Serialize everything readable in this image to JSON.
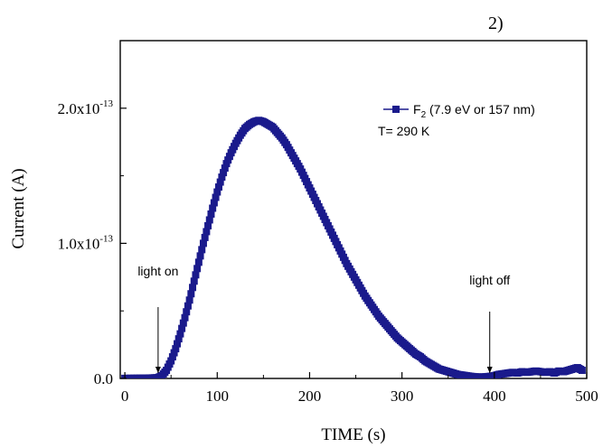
{
  "chart_data": {
    "type": "scatter",
    "title_fragment": "2)",
    "xlabel": "TIME (s)",
    "ylabel": "Current (A)",
    "xlim": [
      -5,
      500
    ],
    "ylim": [
      0,
      2.5e-13
    ],
    "x_ticks": [
      {
        "value": 0,
        "label": "0"
      },
      {
        "value": 100,
        "label": "100"
      },
      {
        "value": 200,
        "label": "200"
      },
      {
        "value": 300,
        "label": "300"
      },
      {
        "value": 400,
        "label": "400"
      },
      {
        "value": 500,
        "label": "500"
      }
    ],
    "y_ticks": [
      {
        "value": 0,
        "base": "0.0",
        "exp": ""
      },
      {
        "value": 1e-13,
        "base": "1.0x10",
        "exp": "-13"
      },
      {
        "value": 2e-13,
        "base": "2.0x10",
        "exp": "-13"
      }
    ],
    "legend": {
      "series_label": "F",
      "series_sub": "2",
      "series_rest": " (7.9 eV or 157 nm)",
      "temp_label": "T= 290 K",
      "location": "top-right"
    },
    "annotations": [
      {
        "text": "light on",
        "x": 36
      },
      {
        "text": "light off",
        "x": 395
      }
    ],
    "series": [
      {
        "color": "#1a1a8c",
        "marker": "square",
        "points": [
          [
            0,
            1e-16
          ],
          [
            10,
            2e-16
          ],
          [
            20,
            3e-16
          ],
          [
            30,
            4e-16
          ],
          [
            36,
            6e-16
          ],
          [
            40,
            2e-15
          ],
          [
            45,
            6e-15
          ],
          [
            50,
            1.3e-14
          ],
          [
            55,
            2.2e-14
          ],
          [
            60,
            3.3e-14
          ],
          [
            65,
            4.5e-14
          ],
          [
            70,
            5.8e-14
          ],
          [
            75,
            7.2e-14
          ],
          [
            80,
            8.6e-14
          ],
          [
            85,
            1e-13
          ],
          [
            90,
            1.13e-13
          ],
          [
            95,
            1.26e-13
          ],
          [
            100,
            1.38e-13
          ],
          [
            105,
            1.49e-13
          ],
          [
            110,
            1.59e-13
          ],
          [
            115,
            1.67e-13
          ],
          [
            120,
            1.74e-13
          ],
          [
            125,
            1.8e-13
          ],
          [
            130,
            1.85e-13
          ],
          [
            135,
            1.88e-13
          ],
          [
            140,
            1.9e-13
          ],
          [
            145,
            1.91e-13
          ],
          [
            150,
            1.9e-13
          ],
          [
            155,
            1.88e-13
          ],
          [
            160,
            1.86e-13
          ],
          [
            165,
            1.82e-13
          ],
          [
            170,
            1.78e-13
          ],
          [
            175,
            1.73e-13
          ],
          [
            180,
            1.67e-13
          ],
          [
            185,
            1.61e-13
          ],
          [
            190,
            1.55e-13
          ],
          [
            195,
            1.48e-13
          ],
          [
            200,
            1.41e-13
          ],
          [
            205,
            1.34e-13
          ],
          [
            210,
            1.27e-13
          ],
          [
            215,
            1.2e-13
          ],
          [
            220,
            1.13e-13
          ],
          [
            225,
            1.06e-13
          ],
          [
            230,
            9.9e-14
          ],
          [
            235,
            9.2e-14
          ],
          [
            240,
            8.5e-14
          ],
          [
            245,
            7.9e-14
          ],
          [
            250,
            7.3e-14
          ],
          [
            255,
            6.7e-14
          ],
          [
            260,
            6.1e-14
          ],
          [
            265,
            5.6e-14
          ],
          [
            270,
            5.1e-14
          ],
          [
            275,
            4.6e-14
          ],
          [
            280,
            4.2e-14
          ],
          [
            285,
            3.8e-14
          ],
          [
            290,
            3.4e-14
          ],
          [
            295,
            3e-14
          ],
          [
            300,
            2.7e-14
          ],
          [
            305,
            2.4e-14
          ],
          [
            310,
            2.1e-14
          ],
          [
            315,
            1.8e-14
          ],
          [
            320,
            1.6e-14
          ],
          [
            325,
            1.3e-14
          ],
          [
            330,
            1.1e-14
          ],
          [
            335,
            9e-15
          ],
          [
            340,
            7e-15
          ],
          [
            345,
            6e-15
          ],
          [
            350,
            5e-15
          ],
          [
            355,
            4e-15
          ],
          [
            360,
            3e-15
          ],
          [
            365,
            2.5e-15
          ],
          [
            370,
            2e-15
          ],
          [
            375,
            1.5e-15
          ],
          [
            380,
            1.2e-15
          ],
          [
            385,
            1e-15
          ],
          [
            390,
            1.2e-15
          ],
          [
            395,
            1.5e-15
          ],
          [
            400,
            2e-15
          ],
          [
            405,
            3e-15
          ],
          [
            410,
            3.5e-15
          ],
          [
            415,
            4e-15
          ],
          [
            420,
            4.5e-15
          ],
          [
            425,
            4e-15
          ],
          [
            430,
            5e-15
          ],
          [
            435,
            4.5e-15
          ],
          [
            440,
            5e-15
          ],
          [
            445,
            5.5e-15
          ],
          [
            450,
            5e-15
          ],
          [
            455,
            4.5e-15
          ],
          [
            460,
            5e-15
          ],
          [
            465,
            4e-15
          ],
          [
            470,
            5.5e-15
          ],
          [
            475,
            5e-15
          ],
          [
            480,
            6e-15
          ],
          [
            485,
            7e-15
          ],
          [
            490,
            8e-15
          ],
          [
            495,
            6e-15
          ]
        ]
      }
    ]
  }
}
